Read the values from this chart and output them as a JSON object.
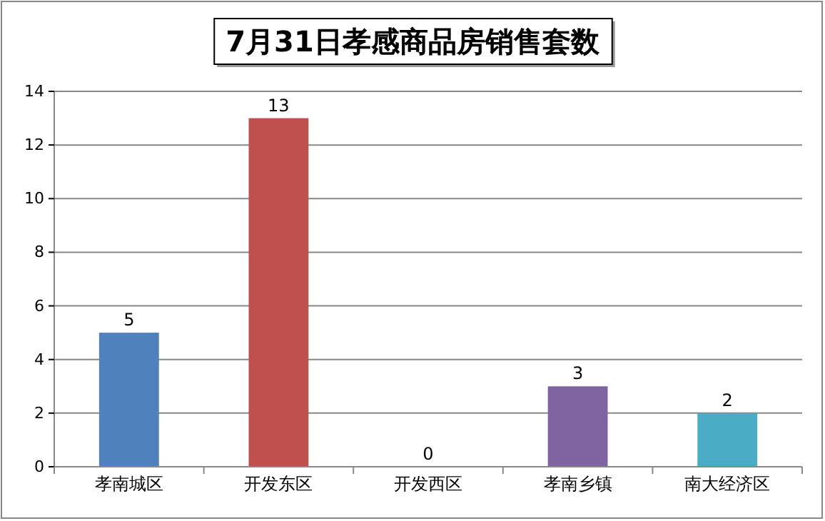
{
  "chart_data": {
    "type": "bar",
    "title": "7月31日孝感商品房销售套数",
    "categories": [
      "孝南城区",
      "开发东区",
      "开发西区",
      "孝南乡镇",
      "南大经济区"
    ],
    "values": [
      5,
      13,
      0,
      3,
      2
    ],
    "colors": [
      "#4f81bd",
      "#c0504d",
      "#9bbb59",
      "#8064a2",
      "#4bacc6"
    ],
    "ylim": [
      0,
      14
    ],
    "yticks": [
      0,
      2,
      4,
      6,
      8,
      10,
      12,
      14
    ],
    "grid": "y",
    "data_labels": true
  }
}
